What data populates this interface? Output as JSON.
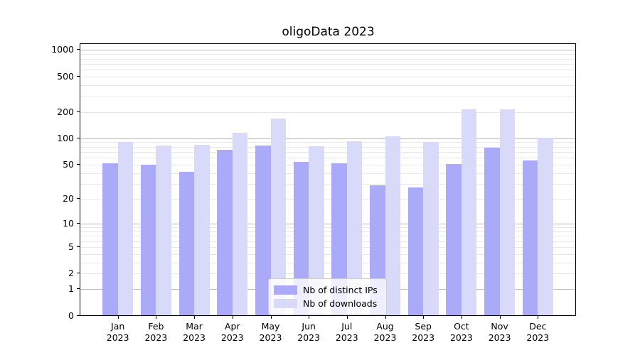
{
  "chart_data": {
    "type": "bar",
    "title": "oligoData 2023",
    "scale": "log1p",
    "categories": [
      "Jan",
      "Feb",
      "Mar",
      "Apr",
      "May",
      "Jun",
      "Jul",
      "Aug",
      "Sep",
      "Oct",
      "Nov",
      "Dec"
    ],
    "year_label": "2023",
    "series": [
      {
        "name": "Nb of distinct IPs",
        "color": "#aaaaf8",
        "values": [
          52,
          50,
          41,
          74,
          83,
          54,
          52,
          29,
          27,
          51,
          78,
          56
        ]
      },
      {
        "name": "Nb of downloads",
        "color": "#d9d9fa",
        "values": [
          90,
          83,
          85,
          115,
          167,
          81,
          92,
          105,
          90,
          215,
          212,
          101
        ]
      }
    ],
    "yticks": [
      0,
      1,
      2,
      5,
      10,
      20,
      50,
      100,
      200,
      500,
      1000
    ],
    "major_gridlines": [
      1,
      10,
      100,
      1000
    ],
    "minor_gridline_decades": [
      1,
      10,
      100
    ],
    "ylim": [
      0,
      1190
    ],
    "xlabel": "",
    "ylabel": "",
    "grid": true,
    "legend_position": "lower center",
    "colors": {
      "major_grid": "#bbbbbb",
      "minor_grid": "#e8e8e8",
      "axis": "#000000",
      "text": "#000000",
      "background": "#ffffff"
    }
  }
}
